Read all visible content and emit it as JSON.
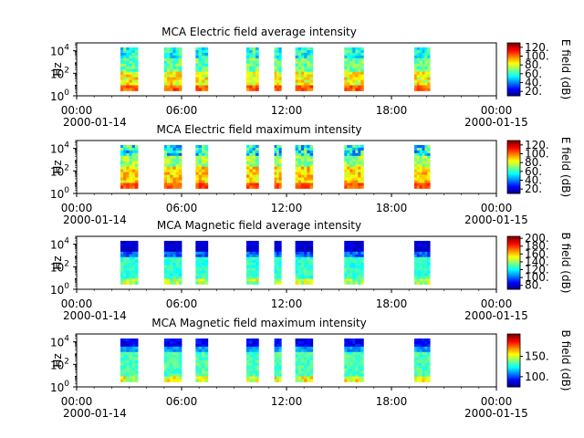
{
  "chart_data": [
    {
      "type": "heatmap",
      "title": "MCA  Electric field average intensity",
      "ylabel": "Hz",
      "colorbar_label": "E field (dB)",
      "colorbar_ticks": [
        "20.",
        "40.",
        "60.",
        "80.",
        "100.",
        "120."
      ],
      "colorbar_range": [
        10,
        130
      ],
      "y_ticks": [
        {
          "exp": "0"
        },
        {
          "exp": "2"
        },
        {
          "exp": "4"
        }
      ],
      "x_ticks": [
        "00:00",
        "06:00",
        "12:00",
        "18:00",
        "00:00"
      ],
      "x_dates": [
        "2000-01-14",
        "2000-01-15"
      ],
      "x_range_hours": [
        0,
        24
      ],
      "y_range_log10": [
        0,
        4.7
      ],
      "data_segments_hours": [
        [
          2.5,
          3.5
        ],
        [
          5.0,
          6.0
        ],
        [
          6.8,
          7.5
        ],
        [
          9.7,
          10.4
        ],
        [
          11.3,
          11.7
        ],
        [
          12.5,
          13.5
        ],
        [
          15.3,
          16.4
        ],
        [
          19.3,
          20.2
        ]
      ]
    },
    {
      "type": "heatmap",
      "title": "MCA  Electric field maximum intensity",
      "ylabel": "Hz",
      "colorbar_label": "E field (dB)",
      "colorbar_ticks": [
        "20.",
        "40.",
        "60.",
        "80.",
        "100.",
        "120."
      ],
      "colorbar_range": [
        10,
        130
      ],
      "y_ticks": [
        {
          "exp": "0"
        },
        {
          "exp": "2"
        },
        {
          "exp": "4"
        }
      ],
      "x_ticks": [
        "00:00",
        "06:00",
        "12:00",
        "18:00",
        "00:00"
      ],
      "x_dates": [
        "2000-01-14",
        "2000-01-15"
      ],
      "x_range_hours": [
        0,
        24
      ],
      "y_range_log10": [
        0,
        4.7
      ],
      "data_segments_hours": [
        [
          2.5,
          3.5
        ],
        [
          5.0,
          6.0
        ],
        [
          6.8,
          7.5
        ],
        [
          9.7,
          10.4
        ],
        [
          11.3,
          11.7
        ],
        [
          12.5,
          13.5
        ],
        [
          15.3,
          16.4
        ],
        [
          19.3,
          20.2
        ]
      ]
    },
    {
      "type": "heatmap",
      "title": "MCA  Magnetic field average intensity",
      "ylabel": "Hz",
      "colorbar_label": "B field (dB)",
      "colorbar_ticks": [
        "80.",
        "100.",
        "120.",
        "140.",
        "160.",
        "180.",
        "200."
      ],
      "colorbar_range": [
        70,
        205
      ],
      "y_ticks": [
        {
          "exp": "0"
        },
        {
          "exp": "2"
        },
        {
          "exp": "4"
        }
      ],
      "x_ticks": [
        "00:00",
        "06:00",
        "12:00",
        "18:00",
        "00:00"
      ],
      "x_dates": [
        "2000-01-14",
        "2000-01-15"
      ],
      "x_range_hours": [
        0,
        24
      ],
      "y_range_log10": [
        0,
        4.7
      ],
      "data_segments_hours": [
        [
          2.5,
          3.5
        ],
        [
          5.0,
          6.0
        ],
        [
          6.8,
          7.5
        ],
        [
          9.7,
          10.4
        ],
        [
          11.3,
          11.7
        ],
        [
          12.5,
          13.5
        ],
        [
          15.3,
          16.4
        ],
        [
          19.3,
          20.2
        ]
      ]
    },
    {
      "type": "heatmap",
      "title": "MCA  Magnetic field maximum intensity",
      "ylabel": "Hz",
      "colorbar_label": "B field (dB)",
      "colorbar_ticks": [
        "100.",
        "150."
      ],
      "colorbar_range": [
        75,
        205
      ],
      "y_ticks": [
        {
          "exp": "0"
        },
        {
          "exp": "2"
        },
        {
          "exp": "4"
        }
      ],
      "x_ticks": [
        "00:00",
        "06:00",
        "12:00",
        "18:00",
        "00:00"
      ],
      "x_dates": [
        "2000-01-14",
        "2000-01-15"
      ],
      "x_range_hours": [
        0,
        24
      ],
      "y_range_log10": [
        0,
        4.7
      ],
      "data_segments_hours": [
        [
          2.5,
          3.5
        ],
        [
          5.0,
          6.0
        ],
        [
          6.8,
          7.5
        ],
        [
          9.7,
          10.4
        ],
        [
          11.3,
          11.7
        ],
        [
          12.5,
          13.5
        ],
        [
          15.3,
          16.4
        ],
        [
          19.3,
          20.2
        ]
      ]
    }
  ]
}
